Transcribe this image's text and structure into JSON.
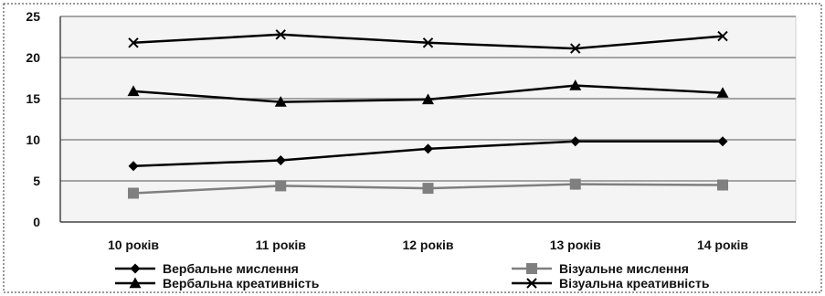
{
  "chart_data": {
    "type": "line",
    "title": "",
    "xlabel": "",
    "ylabel": "",
    "categories": [
      "10 років",
      "11 років",
      "12 років",
      "13 років",
      "14 років"
    ],
    "ylim": [
      0,
      25
    ],
    "yticks": [
      0,
      5,
      10,
      15,
      20,
      25
    ],
    "grid": true,
    "legend_position": "bottom",
    "series": [
      {
        "name": "Вербальне мислення",
        "values": [
          6.8,
          7.5,
          8.9,
          9.8,
          9.8
        ],
        "marker": "diamond",
        "color": "#000000"
      },
      {
        "name": "Візуальне мислення",
        "values": [
          3.5,
          4.4,
          4.1,
          4.6,
          4.5
        ],
        "marker": "square",
        "color": "#7f7f7f"
      },
      {
        "name": "Вербальна креативність",
        "values": [
          15.9,
          14.6,
          14.9,
          16.6,
          15.7
        ],
        "marker": "triangle",
        "color": "#000000"
      },
      {
        "name": "Візуальна креативність",
        "values": [
          21.8,
          22.8,
          21.8,
          21.1,
          22.6
        ],
        "marker": "x",
        "color": "#000000"
      }
    ]
  }
}
